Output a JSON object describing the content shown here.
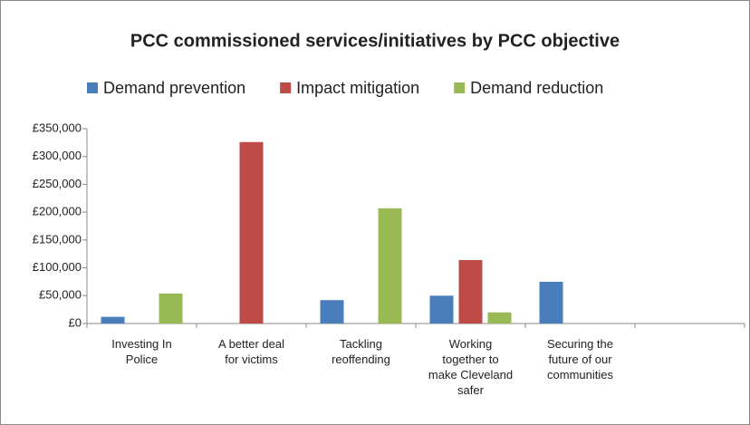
{
  "chart_data": {
    "type": "bar",
    "title": "PCC commissioned  services/initiatives by PCC objective",
    "categories": [
      "Investing In Police",
      "A better deal for victims",
      "Tackling reoffending",
      "Working together to make Cleveland safer",
      "Securing the future of our communities",
      null
    ],
    "series": [
      {
        "name": "Demand prevention",
        "color": "#4a7ebb",
        "values": [
          12000,
          0,
          42000,
          50000,
          75000,
          null
        ]
      },
      {
        "name": "Impact mitigation",
        "color": "#be4b48",
        "values": [
          0,
          326000,
          0,
          114000,
          0,
          null
        ]
      },
      {
        "name": "Demand reduction",
        "color": "#98b954",
        "values": [
          54000,
          0,
          207000,
          20000,
          0,
          null
        ]
      }
    ],
    "ylim": [
      0,
      350000
    ],
    "yticks": [
      {
        "value": 0,
        "label": "£0"
      },
      {
        "value": 50000,
        "label": "£50,000"
      },
      {
        "value": 100000,
        "label": "£100,000"
      },
      {
        "value": 150000,
        "label": "£150,000"
      },
      {
        "value": 200000,
        "label": "£200,000"
      },
      {
        "value": 250000,
        "label": "£250,000"
      },
      {
        "value": 300000,
        "label": "£300,000"
      },
      {
        "value": 350000,
        "label": "£350,000"
      }
    ],
    "legend": "top"
  }
}
